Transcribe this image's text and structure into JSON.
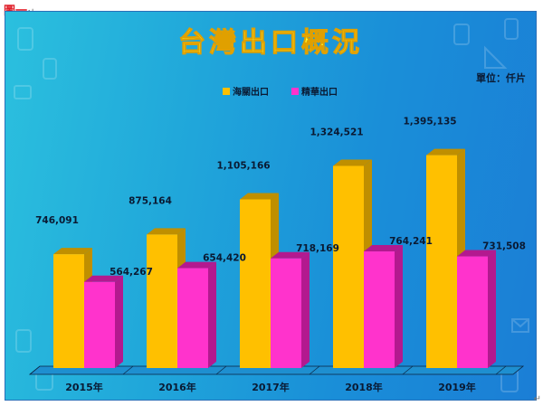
{
  "figure_label": "圖一",
  "figure_label_mark": "↵",
  "corner_mark": "↵",
  "colors": {
    "customs_front": "#ffc000",
    "customs_side": "#bf8f00",
    "customs_top": "#ffd54a",
    "precise_front": "#ff33cc",
    "precise_side": "#b3198f",
    "precise_top": "#ff80df",
    "title_fill": "#ffff33",
    "title_stroke": "#e0a000"
  },
  "chart_data": {
    "type": "bar",
    "title": "台灣出口概況",
    "unit_label": "單位：仟片",
    "legend_position": "top",
    "categories": [
      "2015年",
      "2016年",
      "2017年",
      "2018年",
      "2019年"
    ],
    "series": [
      {
        "name": "海關出口",
        "values": [
          746091,
          875164,
          1105166,
          1324521,
          1395135
        ],
        "labels": [
          "746,091",
          "875,164",
          "1,105,166",
          "1,324,521",
          "1,395,135"
        ]
      },
      {
        "name": "精華出口",
        "values": [
          564267,
          654420,
          718169,
          764241,
          731508
        ],
        "labels": [
          "564,267",
          "654,420",
          "718,169",
          "764,241",
          "731,508"
        ]
      }
    ],
    "ylim": [
      0,
      1600000
    ],
    "grid": false
  }
}
